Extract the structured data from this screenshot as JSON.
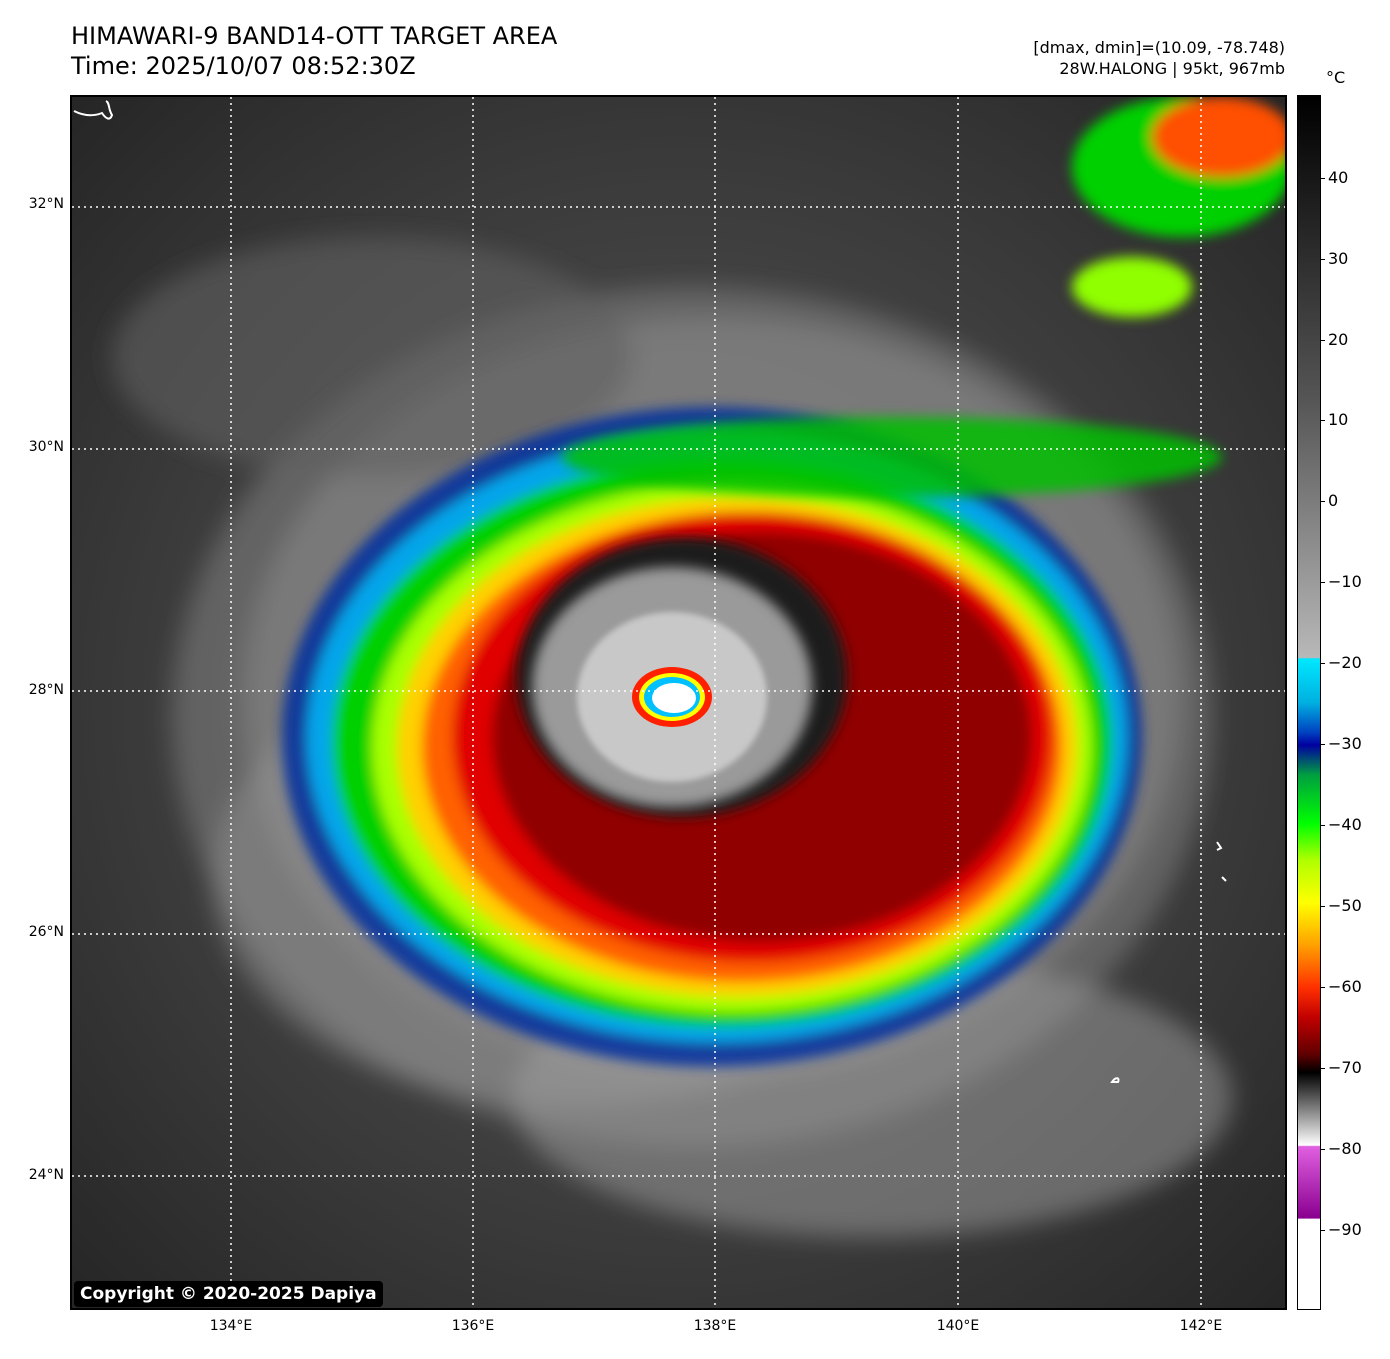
{
  "title": {
    "line1": "HIMAWARI-9 BAND14-OTT TARGET AREA",
    "line2": "Time: 2025/10/07 08:52:30Z"
  },
  "info": {
    "line1": "[dmax, dmin]=(10.09, -78.748)",
    "line2": "28W.HALONG | 95kt, 967mb"
  },
  "map": {
    "lat_labels": [
      "32°N",
      "30°N",
      "28°N",
      "26°N",
      "24°N"
    ],
    "lon_labels": [
      "134°E",
      "136°E",
      "138°E",
      "140°E",
      "142°E"
    ],
    "copyright": "Copyright © 2020-2025 Dapiya"
  },
  "colorbar": {
    "unit": "°C",
    "ticks": [
      "40",
      "30",
      "20",
      "10",
      "0",
      "−10",
      "−20",
      "−30",
      "−40",
      "−50",
      "−60",
      "−70",
      "−80",
      "−90"
    ],
    "colors": {
      "warm": "#000000",
      "mid_gray": "#b8b8b8",
      "cyan": "#00e8ff",
      "blue": "#0000a0",
      "green": "#00ff00",
      "yellow": "#ffff00",
      "orange": "#ffa000",
      "red": "#ff3000",
      "dark_red": "#600000",
      "magenta": "#e060e0",
      "purple": "#8a0090",
      "coldest": "#ffffff"
    }
  }
}
